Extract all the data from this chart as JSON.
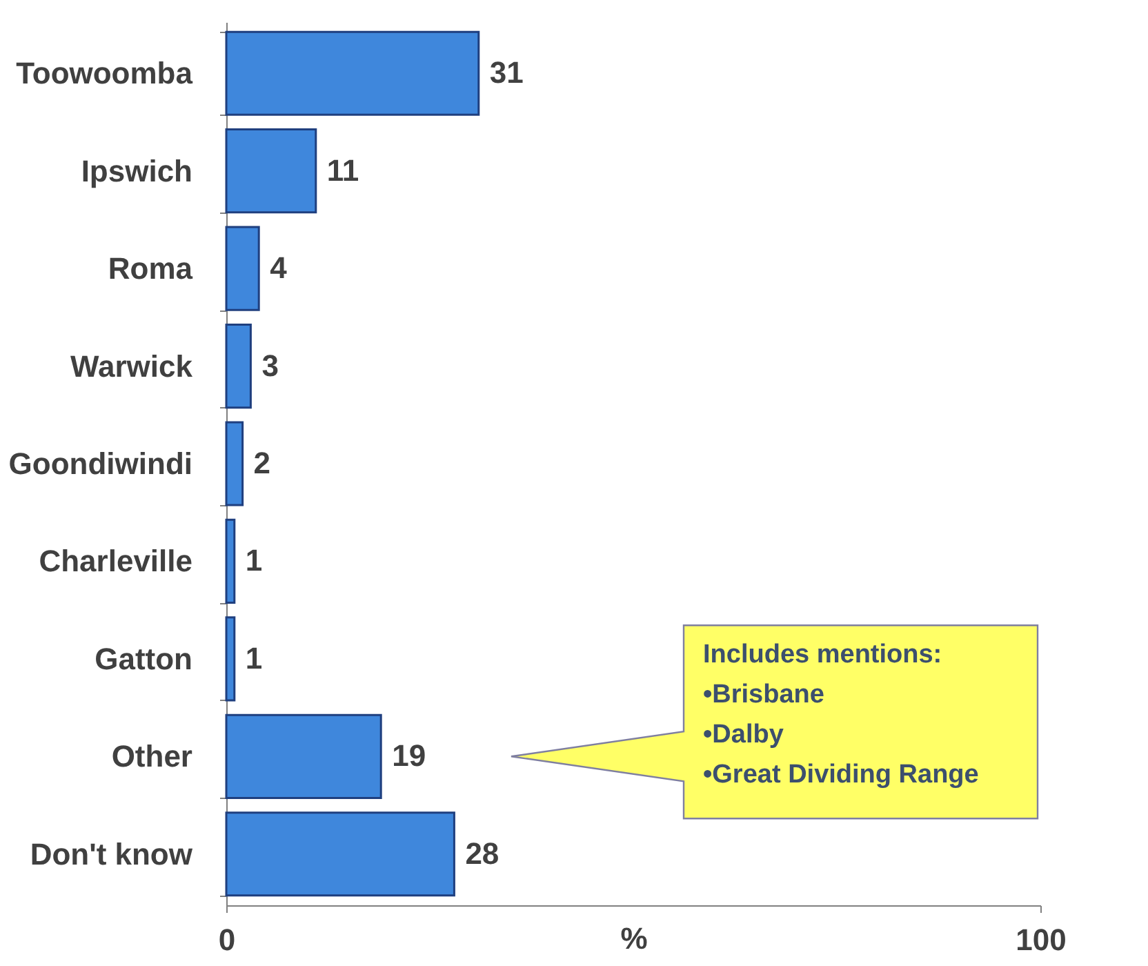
{
  "chart_data": {
    "type": "bar",
    "orientation": "horizontal",
    "xlabel": "%",
    "categories": [
      "Toowoomba",
      "Ipswich",
      "Roma",
      "Warwick",
      "Goondiwindi",
      "Charleville",
      "Gatton",
      "Other",
      "Don't know"
    ],
    "values": [
      31,
      11,
      4,
      3,
      2,
      1,
      1,
      19,
      28
    ],
    "color": "#3f87dc",
    "xlim": [
      0,
      100
    ],
    "xticks": [
      0,
      100
    ],
    "data_labels": true,
    "grid": false,
    "annotations": [
      "Includes mentions:\n•Brisbane\n•Dalby\n•Great Dividing Range"
    ]
  }
}
